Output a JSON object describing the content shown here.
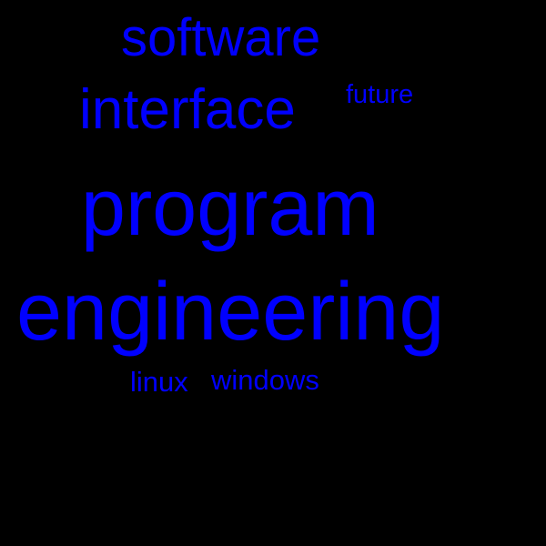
{
  "background_color": "#000000",
  "word_color": "#0000ff",
  "words": [
    {
      "text": "software"
    },
    {
      "text": "interface"
    },
    {
      "text": "future"
    },
    {
      "text": "program"
    },
    {
      "text": "engineering"
    },
    {
      "text": "linux"
    },
    {
      "text": "windows"
    }
  ]
}
